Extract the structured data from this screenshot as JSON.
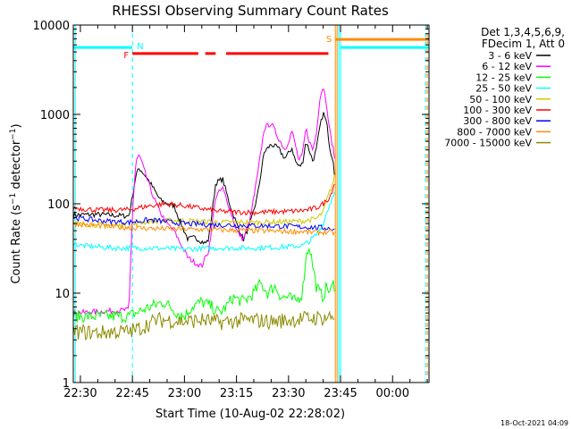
{
  "chart_data": {
    "type": "line",
    "title": "RHESSI Observing Summary Count Rates",
    "xlabel": "Start Time (10-Aug-02 22:28:02)",
    "ylabel": "Count Rate (s⁻¹ detector⁻¹)",
    "y_scale": "log",
    "ylim": [
      1,
      10000
    ],
    "xlim_minutes_after_22:30": [
      -2.05,
      100.5
    ],
    "x_ticks": [
      "22:30",
      "22:45",
      "23:00",
      "23:15",
      "23:30",
      "23:45",
      "00:00"
    ],
    "y_ticks": [
      "1",
      "10",
      "100",
      "1000",
      "10000"
    ],
    "grid": false,
    "legend_position": "right",
    "legend_header": [
      "Det 1,3,4,5,6,9,",
      "FDecim 1, Att 0"
    ],
    "series": [
      {
        "name": "3 - 6 keV",
        "color": "#000000",
        "x": [
          -2,
          5,
          10,
          14,
          15,
          16,
          17,
          19,
          21,
          23,
          25,
          27,
          29,
          31,
          33,
          35,
          36,
          37,
          39,
          41,
          43,
          45,
          47,
          49,
          51,
          53,
          55,
          57,
          59,
          61,
          62,
          63,
          64,
          65,
          66,
          67,
          68,
          69,
          70,
          71,
          72,
          73,
          73.6
        ],
        "y": [
          75,
          76,
          74,
          73,
          120,
          210,
          250,
          200,
          150,
          110,
          100,
          95,
          60,
          40,
          42,
          38,
          36,
          40,
          170,
          190,
          100,
          60,
          40,
          60,
          120,
          380,
          460,
          420,
          320,
          420,
          300,
          260,
          280,
          500,
          400,
          300,
          400,
          700,
          1050,
          800,
          400,
          300,
          150
        ]
      },
      {
        "name": "6 - 12 keV",
        "color": "#ff00ff",
        "x": [
          -2,
          14,
          15,
          16,
          17,
          19,
          21,
          23,
          25,
          27,
          29,
          31,
          33,
          35,
          36,
          37,
          39,
          41,
          43,
          45,
          47,
          49,
          51,
          53,
          55,
          57,
          59,
          61,
          62,
          63,
          64,
          65,
          66,
          67,
          68,
          69,
          70,
          71,
          72,
          73,
          73.6
        ],
        "y": [
          6,
          6.5,
          80,
          300,
          350,
          200,
          120,
          80,
          60,
          50,
          35,
          25,
          22,
          20,
          25,
          30,
          120,
          150,
          90,
          50,
          40,
          70,
          200,
          700,
          800,
          550,
          400,
          650,
          450,
          300,
          350,
          700,
          500,
          400,
          600,
          1500,
          2100,
          1300,
          600,
          400,
          250
        ]
      },
      {
        "name": "12 - 25 keV",
        "color": "#00ff00",
        "x": [
          -2,
          5,
          10,
          14,
          16,
          20,
          24,
          28,
          30,
          32,
          35,
          38,
          40,
          42,
          44,
          47,
          50,
          52,
          54,
          56,
          58,
          60,
          62,
          64,
          65,
          66,
          67,
          68,
          69,
          70,
          71,
          72,
          73,
          73.6
        ],
        "y": [
          5.5,
          5.5,
          5.5,
          5.5,
          6,
          7,
          8,
          6,
          5.5,
          7,
          8,
          7,
          6,
          7,
          9,
          8,
          10,
          13,
          10,
          12,
          9,
          9,
          8,
          10,
          25,
          35,
          20,
          12,
          10,
          9,
          12,
          10,
          13,
          11
        ]
      },
      {
        "name": "25 - 50 keV",
        "color": "#00ffff",
        "x": [
          -2,
          0,
          5,
          10,
          14,
          16,
          20,
          30,
          40,
          50,
          60,
          64,
          66,
          68,
          70,
          71,
          72,
          73,
          73.6
        ],
        "y": [
          36,
          34,
          33,
          32,
          32,
          32,
          32,
          31,
          32,
          32,
          33,
          34,
          38,
          45,
          60,
          80,
          100,
          130,
          170
        ]
      },
      {
        "name": "50 - 100 keV",
        "color": "#d2c800",
        "x": [
          -2,
          5,
          10,
          14,
          20,
          30,
          40,
          50,
          60,
          64,
          66,
          68,
          70,
          71,
          72,
          73,
          73.6
        ],
        "y": [
          60,
          58,
          57,
          57,
          64,
          65,
          62,
          62,
          63,
          64,
          66,
          68,
          80,
          110,
          140,
          180,
          230
        ]
      },
      {
        "name": "100 - 300 keV",
        "color": "#ff0000",
        "x": [
          -2,
          5,
          10,
          14,
          20,
          25,
          30,
          40,
          50,
          60,
          64,
          66,
          68,
          70,
          72,
          73,
          73.6
        ],
        "y": [
          90,
          85,
          85,
          86,
          95,
          100,
          95,
          82,
          80,
          82,
          84,
          86,
          90,
          100,
          120,
          160,
          180
        ]
      },
      {
        "name": "300 - 800 keV",
        "color": "#0000ff",
        "x": [
          -2,
          5,
          10,
          14,
          20,
          30,
          40,
          50,
          60,
          64,
          66,
          68,
          70,
          72,
          73.6
        ],
        "y": [
          70,
          65,
          63,
          62,
          66,
          60,
          58,
          57,
          56,
          55,
          55,
          54,
          54,
          53,
          52
        ]
      },
      {
        "name": "800 - 7000 keV",
        "color": "#ff8c00",
        "x": [
          -2,
          5,
          10,
          14,
          20,
          30,
          40,
          50,
          60,
          64,
          66,
          68,
          70,
          72,
          73.6
        ],
        "y": [
          60,
          57,
          55,
          54,
          53,
          52,
          51,
          50,
          49,
          49,
          48,
          48,
          48,
          48,
          47
        ]
      },
      {
        "name": "7000 - 15000 keV",
        "color": "#8b8b00",
        "x": [
          -2,
          5,
          10,
          14,
          16,
          18,
          20,
          22,
          25,
          30,
          35,
          40,
          45,
          50,
          55,
          60,
          65,
          70,
          72,
          73.6
        ],
        "y": [
          3.7,
          3.6,
          3.7,
          3.7,
          3.9,
          4.2,
          4.6,
          5,
          5,
          4.8,
          5,
          4.7,
          4.9,
          5,
          4.8,
          5,
          5.2,
          5.3,
          5.4,
          5.5
        ]
      }
    ],
    "flag_bars": [
      {
        "label": "N",
        "color": "#00ffff",
        "segments": [
          [
            -2,
            15
          ],
          [
            75,
            100.5
          ]
        ],
        "y": 5600
      },
      {
        "label": "F",
        "color": "#ff0000",
        "segments": [
          [
            15,
            34
          ],
          [
            36,
            39
          ],
          [
            42,
            71.5
          ]
        ],
        "y": 4800
      },
      {
        "label": "S",
        "color": "#ff8c00",
        "segments": [
          [
            73.5,
            100.5
          ]
        ],
        "y": 6900
      }
    ],
    "flag_vertical_markers": [
      {
        "x": 15,
        "color": "#00ffff",
        "style": "dashed"
      },
      {
        "x": 73.5,
        "color": "#ff8c00",
        "style": "solid"
      },
      {
        "x": 74,
        "color": "#ff8c00",
        "style": "solid"
      },
      {
        "x": 75,
        "color": "#00ffff",
        "style": "solid"
      },
      {
        "x": 99.5,
        "color": "#00ffff",
        "style": "dashed"
      },
      {
        "x": -1.5,
        "color": "#00ffff",
        "style": "solid"
      },
      {
        "x": 74.5,
        "color": "#00ffff",
        "style": "solid"
      },
      {
        "x": 100.0,
        "color": "#ff8c00",
        "style": "dashed"
      }
    ],
    "footer_timestamp": "18-Oct-2021 04:09"
  }
}
